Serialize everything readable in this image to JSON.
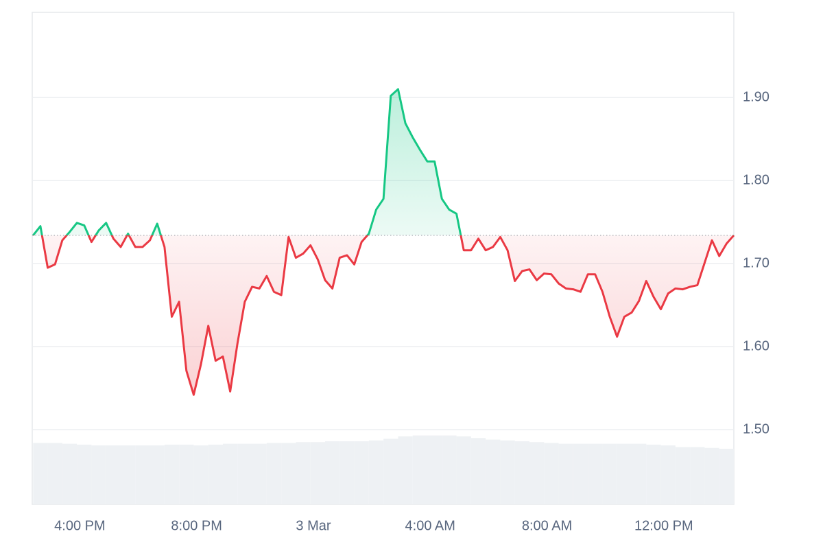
{
  "chart_data": {
    "type": "line",
    "x": [
      14.4,
      14.65,
      14.9,
      15.15,
      15.4,
      15.65,
      15.9,
      16.15,
      16.4,
      16.65,
      16.9,
      17.15,
      17.4,
      17.65,
      17.9,
      18.15,
      18.4,
      18.65,
      18.9,
      19.15,
      19.4,
      19.65,
      19.9,
      20.15,
      20.4,
      20.65,
      20.9,
      21.15,
      21.4,
      21.65,
      21.9,
      22.15,
      22.4,
      22.65,
      22.9,
      23.15,
      23.4,
      23.65,
      23.9,
      24.15,
      24.4,
      24.65,
      24.9,
      25.15,
      25.4,
      25.65,
      25.9,
      26.15,
      26.4,
      26.65,
      26.9,
      27.15,
      27.4,
      27.65,
      27.9,
      28.15,
      28.4,
      28.65,
      28.9,
      29.15,
      29.4,
      29.65,
      29.9,
      30.15,
      30.4,
      30.65,
      30.9,
      31.15,
      31.4,
      31.65,
      31.9,
      32.15,
      32.4,
      32.65,
      32.9,
      33.15,
      33.4,
      33.65,
      33.9,
      34.15,
      34.4,
      34.65,
      34.9,
      35.15,
      35.4,
      35.65,
      35.9,
      36.15,
      36.4,
      36.65,
      36.9,
      37.15,
      37.4,
      37.65,
      37.9,
      38.15,
      38.4
    ],
    "series": [
      {
        "values": [
          1.734,
          1.745,
          1.695,
          1.699,
          1.728,
          1.738,
          1.749,
          1.746,
          1.726,
          1.74,
          1.749,
          1.73,
          1.72,
          1.736,
          1.72,
          1.72,
          1.728,
          1.748,
          1.72,
          1.636,
          1.654,
          1.571,
          1.542,
          1.579,
          1.625,
          1.583,
          1.588,
          1.546,
          1.604,
          1.654,
          1.672,
          1.67,
          1.685,
          1.666,
          1.662,
          1.732,
          1.707,
          1.712,
          1.722,
          1.705,
          1.68,
          1.67,
          1.707,
          1.71,
          1.699,
          1.726,
          1.736,
          1.765,
          1.778,
          1.902,
          1.91,
          1.869,
          1.852,
          1.837,
          1.823,
          1.823,
          1.778,
          1.765,
          1.76,
          1.716,
          1.716,
          1.73,
          1.716,
          1.72,
          1.732,
          1.716,
          1.679,
          1.691,
          1.693,
          1.68,
          1.688,
          1.687,
          1.676,
          1.67,
          1.669,
          1.666,
          1.687,
          1.687,
          1.666,
          1.636,
          1.612,
          1.636,
          1.641,
          1.655,
          1.679,
          1.66,
          1.645,
          1.664,
          1.67,
          1.669,
          1.672,
          1.674,
          1.701,
          1.728,
          1.709,
          1.724,
          1.734
        ]
      }
    ],
    "baseline": 1.734,
    "up_color": "#16c784",
    "down_color": "#ea3943",
    "volume": {
      "color": "#eef1f4",
      "x": [
        14.4,
        14.9,
        15.4,
        15.9,
        16.4,
        16.9,
        17.4,
        17.9,
        18.4,
        18.9,
        19.4,
        19.9,
        20.4,
        20.9,
        21.4,
        21.9,
        22.4,
        22.9,
        23.4,
        23.9,
        24.4,
        24.9,
        25.4,
        25.9,
        26.4,
        26.9,
        27.4,
        27.9,
        28.4,
        28.9,
        29.4,
        29.9,
        30.4,
        30.9,
        31.4,
        31.9,
        32.4,
        32.9,
        33.4,
        33.9,
        34.4,
        34.9,
        35.4,
        35.9,
        36.4,
        36.9,
        37.4,
        37.9
      ],
      "values": [
        1.484,
        1.484,
        1.483,
        1.482,
        1.481,
        1.481,
        1.481,
        1.481,
        1.481,
        1.482,
        1.482,
        1.481,
        1.482,
        1.483,
        1.483,
        1.483,
        1.484,
        1.484,
        1.485,
        1.485,
        1.486,
        1.486,
        1.486,
        1.487,
        1.489,
        1.492,
        1.493,
        1.493,
        1.493,
        1.492,
        1.49,
        1.488,
        1.487,
        1.486,
        1.485,
        1.484,
        1.483,
        1.483,
        1.483,
        1.483,
        1.483,
        1.483,
        1.482,
        1.481,
        1.479,
        1.479,
        1.478,
        1.477
      ]
    },
    "xlim": [
      14.37,
      38.4
    ],
    "ylim": [
      1.41,
      2.0025
    ],
    "xticks": [
      {
        "value": 16,
        "label": "4:00 PM"
      },
      {
        "value": 20,
        "label": "8:00 PM"
      },
      {
        "value": 24,
        "label": "3 Mar"
      },
      {
        "value": 28,
        "label": "4:00 AM"
      },
      {
        "value": 32,
        "label": "8:00 AM"
      },
      {
        "value": 36,
        "label": "12:00 PM"
      }
    ],
    "yticks": [
      {
        "value": 1.5,
        "label": "1.50"
      },
      {
        "value": 1.6,
        "label": "1.60"
      },
      {
        "value": 1.7,
        "label": "1.70"
      },
      {
        "value": 1.8,
        "label": "1.80"
      },
      {
        "value": 1.9,
        "label": "1.90"
      }
    ],
    "grid": true
  }
}
